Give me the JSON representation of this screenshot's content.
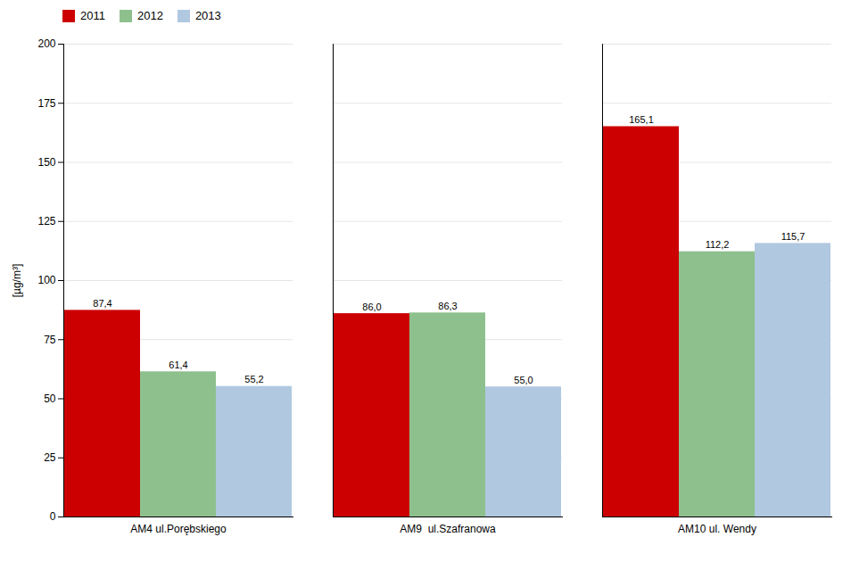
{
  "chart_data": {
    "type": "bar",
    "categories": [
      "AM4 ul.Porębskiego",
      "AM9  ul.Szafranowa",
      "AM10 ul. Wendy"
    ],
    "series": [
      {
        "name": "2011",
        "color": "#cc0000",
        "values": [
          87.4,
          86.0,
          165.1
        ],
        "value_labels": [
          "87,4",
          "86,0",
          "165,1"
        ]
      },
      {
        "name": "2012",
        "color": "#8ec08e",
        "values": [
          61.4,
          86.3,
          112.2
        ],
        "value_labels": [
          "61,4",
          "86,3",
          "112,2"
        ]
      },
      {
        "name": "2013",
        "color": "#b0c8e0",
        "values": [
          55.2,
          55.0,
          115.7
        ],
        "value_labels": [
          "55,2",
          "55,0",
          "115,7"
        ]
      }
    ],
    "ylabel": "[µg/m³]",
    "ylim": [
      0,
      200
    ],
    "yticks": [
      0,
      25,
      50,
      75,
      100,
      125,
      150,
      175,
      200
    ],
    "grid": true,
    "data_labels": true,
    "legend": "upper left"
  }
}
